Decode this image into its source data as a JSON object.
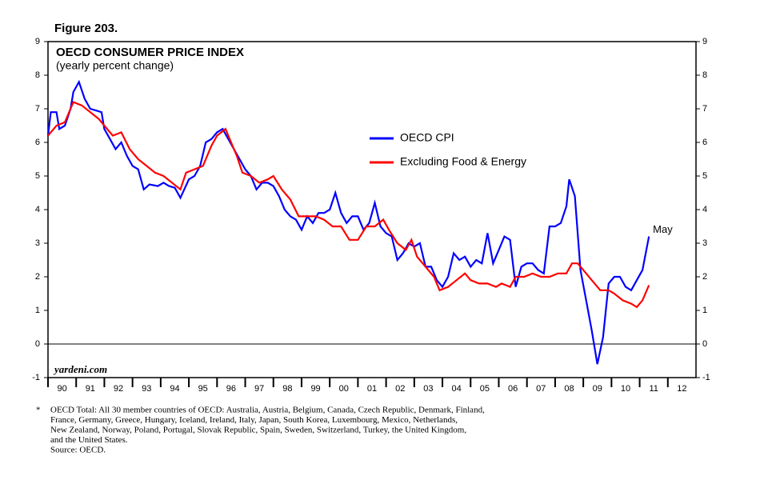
{
  "chart_data": {
    "type": "line",
    "figure_label": "Figure 203.",
    "title": "OECD CONSUMER PRICE INDEX",
    "subtitle": "(yearly percent change)",
    "watermark": "yardeni.com",
    "xlim": [
      1990,
      2013
    ],
    "xticks": [
      {
        "value": 1990,
        "label": "90"
      },
      {
        "value": 1991,
        "label": "91"
      },
      {
        "value": 1992,
        "label": "92"
      },
      {
        "value": 1993,
        "label": "93"
      },
      {
        "value": 1994,
        "label": "94"
      },
      {
        "value": 1995,
        "label": "95"
      },
      {
        "value": 1996,
        "label": "96"
      },
      {
        "value": 1997,
        "label": "97"
      },
      {
        "value": 1998,
        "label": "98"
      },
      {
        "value": 1999,
        "label": "99"
      },
      {
        "value": 2000,
        "label": "00"
      },
      {
        "value": 2001,
        "label": "01"
      },
      {
        "value": 2002,
        "label": "02"
      },
      {
        "value": 2003,
        "label": "03"
      },
      {
        "value": 2004,
        "label": "04"
      },
      {
        "value": 2005,
        "label": "05"
      },
      {
        "value": 2006,
        "label": "06"
      },
      {
        "value": 2007,
        "label": "07"
      },
      {
        "value": 2008,
        "label": "08"
      },
      {
        "value": 2009,
        "label": "09"
      },
      {
        "value": 2010,
        "label": "10"
      },
      {
        "value": 2011,
        "label": "11"
      },
      {
        "value": 2012,
        "label": "12"
      }
    ],
    "ylim": [
      -1,
      9
    ],
    "yticks": [
      -1,
      0,
      1,
      2,
      3,
      4,
      5,
      6,
      7,
      8,
      9
    ],
    "y2lim": [
      -1,
      9
    ],
    "y2ticks": [
      -1,
      0,
      1,
      2,
      3,
      4,
      5,
      6,
      7,
      8,
      9
    ],
    "zero_line": true,
    "series": [
      {
        "name": "OECD CPI",
        "color": "#0000ff",
        "x": [
          1990.0,
          1990.1,
          1990.3,
          1990.4,
          1990.6,
          1990.8,
          1990.9,
          1991.1,
          1991.3,
          1991.5,
          1991.7,
          1991.9,
          1992.0,
          1992.2,
          1992.4,
          1992.6,
          1992.8,
          1993.0,
          1993.2,
          1993.4,
          1993.6,
          1993.9,
          1994.1,
          1994.3,
          1994.5,
          1994.7,
          1995.0,
          1995.2,
          1995.4,
          1995.6,
          1995.8,
          1996.0,
          1996.2,
          1996.4,
          1996.6,
          1996.8,
          1997.0,
          1997.2,
          1997.4,
          1997.6,
          1997.8,
          1998.0,
          1998.2,
          1998.4,
          1998.6,
          1998.8,
          1999.0,
          1999.2,
          1999.4,
          1999.6,
          1999.8,
          2000.0,
          2000.2,
          2000.4,
          2000.6,
          2000.8,
          2001.0,
          2001.2,
          2001.4,
          2001.6,
          2001.8,
          2002.0,
          2002.2,
          2002.4,
          2002.6,
          2002.8,
          2003.0,
          2003.2,
          2003.4,
          2003.6,
          2003.8,
          2004.0,
          2004.2,
          2004.4,
          2004.6,
          2004.8,
          2005.0,
          2005.2,
          2005.4,
          2005.6,
          2005.8,
          2006.0,
          2006.2,
          2006.4,
          2006.6,
          2006.8,
          2007.0,
          2007.2,
          2007.4,
          2007.6,
          2007.8,
          2008.0,
          2008.2,
          2008.4,
          2008.5,
          2008.7,
          2008.9,
          2009.1,
          2009.3,
          2009.5,
          2009.7,
          2009.9,
          2010.1,
          2010.3,
          2010.5,
          2010.7,
          2010.9,
          2011.1,
          2011.33
        ],
        "values": [
          6.2,
          6.9,
          6.9,
          6.4,
          6.5,
          7.0,
          7.5,
          7.8,
          7.3,
          7.0,
          6.95,
          6.9,
          6.4,
          6.1,
          5.8,
          6.0,
          5.6,
          5.3,
          5.2,
          4.6,
          4.75,
          4.7,
          4.8,
          4.7,
          4.65,
          4.35,
          4.9,
          5.0,
          5.3,
          6.0,
          6.1,
          6.3,
          6.4,
          6.1,
          5.8,
          5.5,
          5.2,
          5.0,
          4.6,
          4.8,
          4.8,
          4.7,
          4.4,
          4.0,
          3.8,
          3.7,
          3.4,
          3.8,
          3.6,
          3.9,
          3.9,
          4.0,
          4.5,
          3.9,
          3.6,
          3.8,
          3.8,
          3.4,
          3.6,
          4.2,
          3.5,
          3.3,
          3.2,
          2.5,
          2.7,
          3.0,
          2.9,
          3.0,
          2.3,
          2.3,
          1.9,
          1.7,
          2.0,
          2.7,
          2.5,
          2.6,
          2.3,
          2.5,
          2.4,
          3.3,
          2.4,
          2.8,
          3.2,
          3.1,
          1.7,
          2.3,
          2.4,
          2.4,
          2.2,
          2.1,
          3.5,
          3.5,
          3.6,
          4.1,
          4.9,
          4.4,
          2.2,
          1.3,
          0.4,
          -0.6,
          0.2,
          1.8,
          2.0,
          2.0,
          1.7,
          1.6,
          1.9,
          2.2,
          3.2
        ]
      },
      {
        "name": "Excluding Food & Energy",
        "color": "#ff0000",
        "x": [
          1990.0,
          1990.3,
          1990.6,
          1990.9,
          1991.2,
          1991.5,
          1991.8,
          1992.0,
          1992.3,
          1992.6,
          1992.9,
          1993.2,
          1993.5,
          1993.8,
          1994.1,
          1994.4,
          1994.7,
          1994.9,
          1995.2,
          1995.5,
          1995.8,
          1996.0,
          1996.3,
          1996.5,
          1996.7,
          1996.9,
          1997.2,
          1997.5,
          1997.8,
          1998.0,
          1998.3,
          1998.6,
          1998.9,
          1999.2,
          1999.5,
          1999.8,
          2000.1,
          2000.4,
          2000.7,
          2001.0,
          2001.3,
          2001.6,
          2001.9,
          2002.1,
          2002.4,
          2002.7,
          2002.9,
          2003.1,
          2003.4,
          2003.7,
          2003.9,
          2004.2,
          2004.5,
          2004.8,
          2005.0,
          2005.3,
          2005.6,
          2005.9,
          2006.1,
          2006.4,
          2006.6,
          2006.9,
          2007.2,
          2007.5,
          2007.8,
          2008.1,
          2008.4,
          2008.6,
          2008.8,
          2009.1,
          2009.3,
          2009.6,
          2009.9,
          2010.1,
          2010.4,
          2010.7,
          2010.9,
          2011.1,
          2011.33
        ],
        "values": [
          6.2,
          6.5,
          6.6,
          7.2,
          7.1,
          6.9,
          6.7,
          6.5,
          6.2,
          6.3,
          5.8,
          5.5,
          5.3,
          5.1,
          5.0,
          4.8,
          4.6,
          5.1,
          5.2,
          5.3,
          5.9,
          6.2,
          6.4,
          6.0,
          5.6,
          5.1,
          5.0,
          4.8,
          4.9,
          5.0,
          4.6,
          4.3,
          3.8,
          3.8,
          3.8,
          3.7,
          3.5,
          3.5,
          3.1,
          3.1,
          3.5,
          3.5,
          3.7,
          3.4,
          3.0,
          2.8,
          3.1,
          2.6,
          2.3,
          2.0,
          1.6,
          1.7,
          1.9,
          2.1,
          1.9,
          1.8,
          1.8,
          1.7,
          1.8,
          1.7,
          2.0,
          2.0,
          2.1,
          2.0,
          2.0,
          2.1,
          2.1,
          2.4,
          2.4,
          2.1,
          1.9,
          1.6,
          1.6,
          1.5,
          1.3,
          1.2,
          1.1,
          1.3,
          1.75
        ]
      }
    ],
    "annotations": [
      {
        "text": "May",
        "series": 0
      }
    ],
    "footnote_marker": "*",
    "footnote": [
      "OECD Total: All 30 member countries of OECD: Australia, Austria, Belgium, Canada, Czech Republic, Denmark, Finland,",
      "France, Germany, Greece, Hungary, Iceland, Ireland, Italy, Japan, South Korea, Luxembourg, Mexico, Netherlands,",
      "New Zealand, Norway, Poland, Portugal, Slovak Republic, Spain, Sweden, Switzerland, Turkey, the United Kingdom,",
      "and the United States.",
      "Source: OECD."
    ]
  }
}
